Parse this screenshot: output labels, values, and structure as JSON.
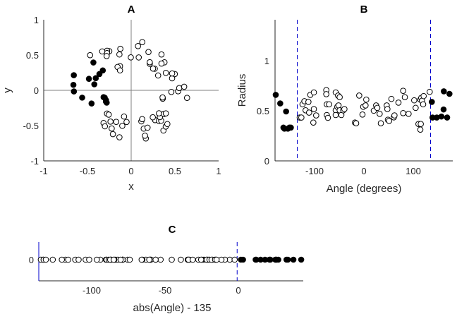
{
  "chart_data": {
    "points_note_fields": [
      "angle_deg",
      "radius",
      "filled"
    ],
    "points": [
      [
        -178.6,
        0.655,
        1
      ],
      [
        -169.5,
        0.57,
        1
      ],
      [
        -157.6,
        0.49,
        1
      ],
      [
        -163,
        0.33,
        1
      ],
      [
        -154,
        0.32,
        1
      ],
      [
        -148,
        0.33,
        1
      ],
      [
        -161,
        0.32,
        1
      ],
      [
        -151,
        0.33,
        1
      ],
      [
        137.6,
        0.585,
        1
      ],
      [
        139,
        0.43,
        1
      ],
      [
        147.6,
        0.43,
        1
      ],
      [
        157,
        0.44,
        1
      ],
      [
        161.4,
        0.51,
        1
      ],
      [
        161.9,
        0.69,
        1
      ],
      [
        168.6,
        0.43,
        1
      ],
      [
        173.3,
        0.665,
        1
      ],
      [
        -130,
        0.43,
        0
      ],
      [
        -126.7,
        0.43,
        0
      ],
      [
        -124.3,
        0.561,
        0
      ],
      [
        -120.5,
        0.592,
        0
      ],
      [
        -118.1,
        0.502,
        0
      ],
      [
        -112.4,
        0.585,
        0
      ],
      [
        -111,
        0.479,
        0
      ],
      [
        -108.6,
        0.655,
        0
      ],
      [
        -101.4,
        0.679,
        0
      ],
      [
        -101.4,
        0.514,
        0
      ],
      [
        -102.4,
        0.38,
        0
      ],
      [
        -96.7,
        0.451,
        0
      ],
      [
        -76.2,
        0.702,
        0
      ],
      [
        -76.2,
        0.662,
        0
      ],
      [
        -75.2,
        0.455,
        0
      ],
      [
        -72.9,
        0.427,
        0
      ],
      [
        -75.2,
        0.561,
        0
      ],
      [
        -70.5,
        0.561,
        0
      ],
      [
        -57.1,
        0.679,
        0
      ],
      [
        -52.4,
        0.648,
        0
      ],
      [
        -49.1,
        0.632,
        0
      ],
      [
        -57.1,
        0.502,
        0
      ],
      [
        -53.8,
        0.537,
        0
      ],
      [
        -51.4,
        0.55,
        0
      ],
      [
        -49.1,
        0.502,
        0
      ],
      [
        -57.1,
        0.455,
        0
      ],
      [
        -45.7,
        0.455,
        0
      ],
      [
        -41.9,
        0.502,
        0
      ],
      [
        -39.5,
        0.514,
        0
      ],
      [
        -18.1,
        0.38,
        0
      ],
      [
        -15.7,
        0.373,
        0
      ],
      [
        -9.5,
        0.648,
        0
      ],
      [
        -2.9,
        0.46,
        0
      ],
      [
        -1.4,
        0.537,
        0
      ],
      [
        3.3,
        0.55,
        0
      ],
      [
        4.8,
        0.608,
        0
      ],
      [
        20,
        0.498,
        0
      ],
      [
        24.8,
        0.55,
        0
      ],
      [
        27.1,
        0.526,
        0
      ],
      [
        31.9,
        0.467,
        0
      ],
      [
        34.3,
        0.373,
        0
      ],
      [
        46.2,
        0.55,
        0
      ],
      [
        47.6,
        0.514,
        0
      ],
      [
        48.6,
        0.408,
        0
      ],
      [
        51,
        0.397,
        0
      ],
      [
        55.7,
        0.615,
        0
      ],
      [
        60.5,
        0.432,
        0
      ],
      [
        61.9,
        0.451,
        0
      ],
      [
        70,
        0.578,
        0
      ],
      [
        79.5,
        0.695,
        0
      ],
      [
        82.9,
        0.632,
        0
      ],
      [
        79.5,
        0.474,
        0
      ],
      [
        90.5,
        0.467,
        0
      ],
      [
        101.9,
        0.601,
        0
      ],
      [
        104.8,
        0.526,
        0
      ],
      [
        110.5,
        0.366,
        0
      ],
      [
        115.2,
        0.366,
        0
      ],
      [
        114.3,
        0.31,
        0
      ],
      [
        114.3,
        0.608,
        0
      ],
      [
        116.2,
        0.625,
        0
      ],
      [
        117.6,
        0.596,
        0
      ],
      [
        120,
        0.561,
        0
      ],
      [
        121,
        0.643,
        0
      ],
      [
        133.3,
        0.685,
        0
      ]
    ],
    "colors": {
      "marker": "#000000",
      "threshold_line": "#0000cc",
      "zero_line": "#808080"
    },
    "panels": [
      {
        "type": "scatter",
        "title": "A",
        "xlabel": "x",
        "ylabel": "y",
        "xlim": [
          -1,
          1
        ],
        "ylim": [
          -1,
          1
        ],
        "xticks": [
          "-1",
          "-0.5",
          "0",
          "0.5",
          "1"
        ],
        "yticks": [
          "1",
          "0.5",
          "0",
          "-0.5",
          "-1"
        ]
      },
      {
        "type": "scatter",
        "title": "B",
        "xlabel": "Angle (degrees)",
        "ylabel": "Radius",
        "xlim": [
          -180,
          180
        ],
        "ylim": [
          0,
          1.4
        ],
        "xticks": [
          "-100",
          "0",
          "100"
        ],
        "yticks": [
          "0",
          "0.5",
          "1"
        ],
        "vlines": [
          -135,
          135
        ]
      },
      {
        "type": "scatter",
        "title": "C",
        "xlabel": "abs(Angle) - 135",
        "ylabel": "",
        "xlim": [
          -135,
          45
        ],
        "xticks": [
          "-100",
          "-50",
          "0"
        ],
        "yticks": [
          "0"
        ],
        "vlines": [
          -135,
          0
        ]
      }
    ]
  }
}
